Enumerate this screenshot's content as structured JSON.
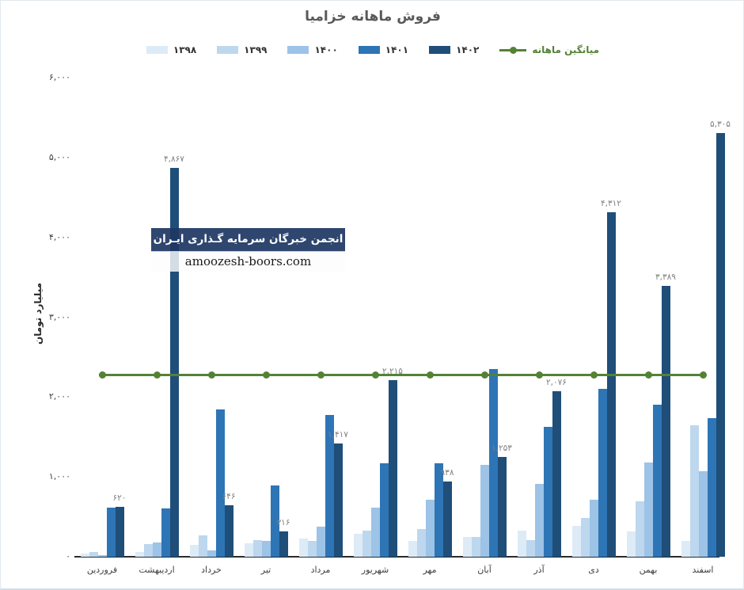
{
  "chart_data": {
    "type": "bar",
    "title": "فروش ماهانه خزامیا",
    "ylabel": "میلیارد تومان",
    "ylim": [
      0,
      6000
    ],
    "yticks": [
      "۰",
      "۱,۰۰۰",
      "۲,۰۰۰",
      "۳,۰۰۰",
      "۴,۰۰۰",
      "۵,۰۰۰",
      "۶,۰۰۰"
    ],
    "grid": false,
    "legend_position": "top",
    "categories": [
      "فروردین",
      "اردیبهشت",
      "خرداد",
      "تیر",
      "مرداد",
      "شهریور",
      "مهر",
      "آبان",
      "آذر",
      "دی",
      "بهمن",
      "اسفند"
    ],
    "series": [
      {
        "name": "۱۳۹۸",
        "color": "#ddebf7",
        "values": [
          40,
          60,
          150,
          170,
          230,
          290,
          200,
          250,
          330,
          390,
          320,
          200
        ]
      },
      {
        "name": "۱۳۹۹",
        "color": "#bdd7ee",
        "values": [
          60,
          160,
          270,
          210,
          200,
          330,
          350,
          250,
          210,
          490,
          690,
          1650
        ]
      },
      {
        "name": "۱۴۰۰",
        "color": "#9dc3e6",
        "values": [
          15,
          180,
          80,
          200,
          375,
          615,
          715,
          1150,
          915,
          715,
          1180,
          1070
        ]
      },
      {
        "name": "۱۴۰۱",
        "color": "#2e75b6",
        "values": [
          615,
          605,
          1845,
          890,
          1775,
          1170,
          1170,
          2350,
          1630,
          2100,
          1905,
          1735
        ]
      },
      {
        "name": "۱۴۰۲",
        "color": "#1f4e79",
        "values": [
          620,
          4867,
          646,
          316,
          1417,
          2215,
          938,
          1253,
          2076,
          4312,
          3389,
          5305
        ],
        "labels": [
          "۶۲۰",
          "۴,۸۶۷",
          "۶۴۶",
          "۳۱۶",
          "۱,۴۱۷",
          "۲,۲۱۵",
          "۹۳۸",
          "۱,۲۵۳",
          "۲,۰۷۶",
          "۴,۳۱۲",
          "۳,۳۸۹",
          "۵,۳۰۵"
        ]
      }
    ],
    "average_line": {
      "label": "میانگین ماهانه",
      "value": 2280,
      "color": "#548235"
    }
  },
  "watermark": {
    "line1": "انجمن خبرگان سرمایه گـذاری ایـران",
    "line2": "amoozesh-boors.com"
  }
}
